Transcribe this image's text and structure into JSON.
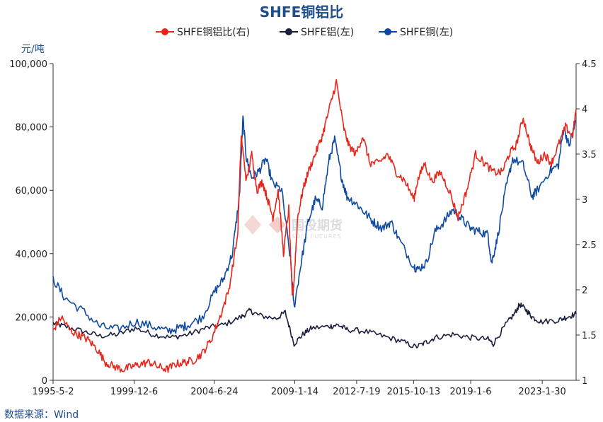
{
  "chart_data": {
    "type": "line",
    "title": "SHFE铜铝比",
    "left_unit": "元/吨",
    "source": "数据来源：Wind",
    "watermark": {
      "main": "国投期货",
      "sub": "SDIC FUTURES"
    },
    "x_ticks": [
      "1995-5-2",
      "1999-12-6",
      "2004-6-24",
      "2009-1-14",
      "2012-7-19",
      "2015-10-13",
      "2019-1-6",
      "2023-1-30"
    ],
    "x_tick_years": [
      1995.33,
      1999.93,
      2004.48,
      2009.04,
      2012.55,
      2015.78,
      2019.02,
      2023.08
    ],
    "x_range": [
      1995.33,
      2025.0
    ],
    "y_left": {
      "min": 0,
      "max": 100000,
      "ticks": [
        "0",
        "20,000",
        "40,000",
        "60,000",
        "80,000",
        "100,000"
      ],
      "tick_values": [
        0,
        20000,
        40000,
        60000,
        80000,
        100000
      ]
    },
    "y_right": {
      "min": 1,
      "max": 4.5,
      "ticks": [
        "1",
        "1.5",
        "2",
        "2.5",
        "3",
        "3.5",
        "4",
        "4.5"
      ],
      "tick_values": [
        1,
        1.5,
        2,
        2.5,
        3,
        3.5,
        4,
        4.5
      ]
    },
    "series": [
      {
        "name": "SHFE铜铝比(右)",
        "axis": "right",
        "color": "#e8251b",
        "x": [
          1995.33,
          1995.8,
          1996.3,
          1996.8,
          1997.3,
          1997.8,
          1998.3,
          1998.8,
          1999.3,
          1999.8,
          2000.3,
          2000.8,
          2001.3,
          2001.8,
          2002.3,
          2002.8,
          2003.3,
          2003.8,
          2004.3,
          2004.8,
          2005.3,
          2005.8,
          2006.0,
          2006.3,
          2006.6,
          2006.9,
          2007.2,
          2007.5,
          2007.8,
          2008.1,
          2008.4,
          2008.7,
          2008.9,
          2009.0,
          2009.2,
          2009.5,
          2009.8,
          2010.2,
          2010.6,
          2011.0,
          2011.4,
          2011.8,
          2012.1,
          2012.5,
          2012.9,
          2013.3,
          2013.8,
          2014.3,
          2014.8,
          2015.3,
          2015.8,
          2016.0,
          2016.4,
          2016.8,
          2017.3,
          2017.8,
          2018.3,
          2018.8,
          2019.3,
          2019.8,
          2020.3,
          2020.8,
          2021.2,
          2021.6,
          2022.0,
          2022.4,
          2022.8,
          2023.2,
          2023.6,
          2024.0,
          2024.4,
          2024.8,
          2025.0
        ],
        "values": [
          1.55,
          1.7,
          1.55,
          1.5,
          1.45,
          1.35,
          1.2,
          1.15,
          1.12,
          1.15,
          1.18,
          1.2,
          1.15,
          1.12,
          1.18,
          1.2,
          1.22,
          1.3,
          1.45,
          1.7,
          2.0,
          2.6,
          3.7,
          3.2,
          3.5,
          3.1,
          3.2,
          3.0,
          2.8,
          3.1,
          2.4,
          2.9,
          1.9,
          2.1,
          2.8,
          3.1,
          3.3,
          3.5,
          3.7,
          4.0,
          4.3,
          3.8,
          3.6,
          3.5,
          3.7,
          3.4,
          3.4,
          3.5,
          3.3,
          3.2,
          3.0,
          3.2,
          3.4,
          3.2,
          3.3,
          3.1,
          2.8,
          3.1,
          3.5,
          3.4,
          3.3,
          3.3,
          3.5,
          3.6,
          3.9,
          3.6,
          3.4,
          3.5,
          3.4,
          3.6,
          3.8,
          3.7,
          4.0
        ]
      },
      {
        "name": "SHFE铝(左)",
        "axis": "left",
        "color": "#1a1f3d",
        "x": [
          1995.33,
          1996.0,
          1997.0,
          1998.0,
          1999.0,
          2000.0,
          2001.0,
          2002.0,
          2003.0,
          2004.0,
          2005.0,
          2006.0,
          2006.5,
          2007.0,
          2008.0,
          2008.5,
          2009.0,
          2009.5,
          2010.0,
          2011.0,
          2011.5,
          2012.0,
          2013.0,
          2014.0,
          2015.0,
          2015.9,
          2016.5,
          2017.0,
          2018.0,
          2019.0,
          2020.0,
          2020.3,
          2021.0,
          2021.5,
          2021.8,
          2022.2,
          2022.5,
          2023.0,
          2024.0,
          2024.5,
          2025.0
        ],
        "values": [
          18000,
          17000,
          15500,
          14000,
          14500,
          16500,
          14500,
          13500,
          14500,
          16500,
          17500,
          20000,
          22000,
          20500,
          19500,
          21500,
          11500,
          14500,
          16500,
          17000,
          17500,
          16000,
          15500,
          14000,
          12500,
          10500,
          12000,
          13500,
          14500,
          13500,
          13000,
          11500,
          17500,
          21000,
          24000,
          22000,
          20000,
          18500,
          19000,
          20000,
          21000
        ]
      },
      {
        "name": "SHFE铜(左)",
        "axis": "left",
        "color": "#0f4aa0",
        "x": [
          1995.33,
          1996.0,
          1997.0,
          1998.0,
          1999.0,
          2000.0,
          2001.0,
          2001.8,
          2002.5,
          2003.0,
          2003.8,
          2004.5,
          2005.0,
          2005.5,
          2005.9,
          2006.1,
          2006.3,
          2006.6,
          2007.0,
          2007.4,
          2007.8,
          2008.3,
          2008.8,
          2009.0,
          2009.4,
          2009.8,
          2010.2,
          2010.6,
          2011.0,
          2011.3,
          2011.7,
          2012.0,
          2012.5,
          2013.0,
          2013.5,
          2014.0,
          2014.5,
          2015.0,
          2015.8,
          2016.0,
          2016.5,
          2017.0,
          2017.5,
          2018.0,
          2018.5,
          2019.0,
          2019.5,
          2020.0,
          2020.2,
          2020.5,
          2021.0,
          2021.4,
          2022.0,
          2022.5,
          2022.8,
          2023.5,
          2024.0,
          2024.3,
          2024.6,
          2025.0
        ],
        "values": [
          32000,
          26000,
          22000,
          17000,
          16000,
          18500,
          17000,
          15500,
          16500,
          17500,
          20000,
          28000,
          32000,
          40000,
          58000,
          83000,
          70000,
          64000,
          66000,
          70000,
          62000,
          60000,
          38000,
          23000,
          37000,
          50000,
          57000,
          55000,
          70000,
          76000,
          64000,
          58000,
          56000,
          53000,
          50000,
          48000,
          50000,
          44000,
          36000,
          35000,
          37000,
          47000,
          50000,
          54000,
          51000,
          48000,
          47000,
          46000,
          37000,
          44000,
          60000,
          70000,
          68000,
          58000,
          60000,
          66000,
          68000,
          80000,
          74000,
          82000
        ]
      }
    ]
  }
}
